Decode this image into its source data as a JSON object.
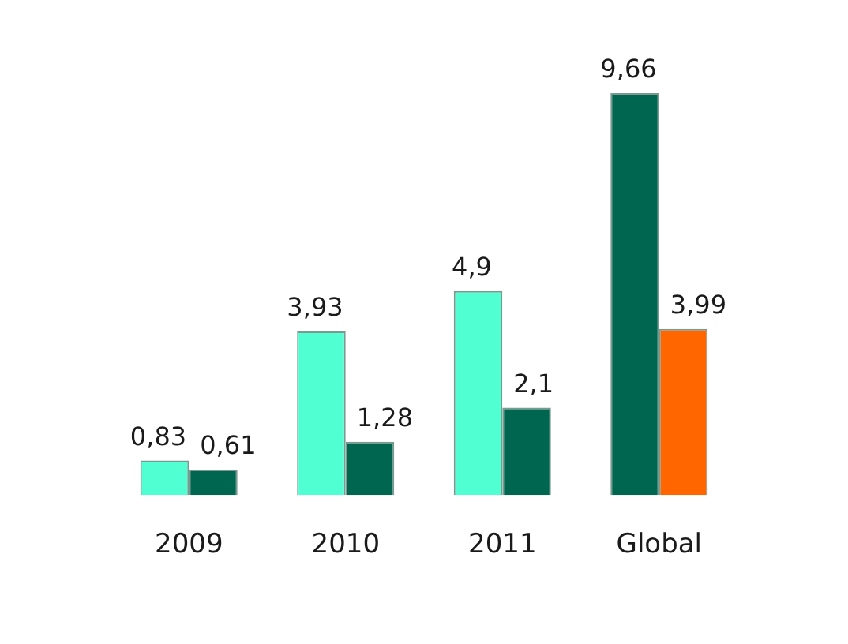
{
  "chart_data": {
    "type": "bar",
    "categories": [
      "2009",
      "2010",
      "2011",
      "Global"
    ],
    "series": [
      {
        "colors": [
          "#50ffd2",
          "#50ffd2",
          "#50ffd2",
          "#006650"
        ],
        "values": [
          0.83,
          3.93,
          4.9,
          9.66
        ],
        "value_labels": [
          "0,83",
          "3,93",
          "4,9",
          "9,66"
        ]
      },
      {
        "colors": [
          "#006650",
          "#006650",
          "#006650",
          "#ff6600"
        ],
        "values": [
          0.61,
          1.28,
          2.1,
          3.99
        ],
        "value_labels": [
          "0,61",
          "1,28",
          "2,1",
          "3,99"
        ]
      }
    ]
  }
}
